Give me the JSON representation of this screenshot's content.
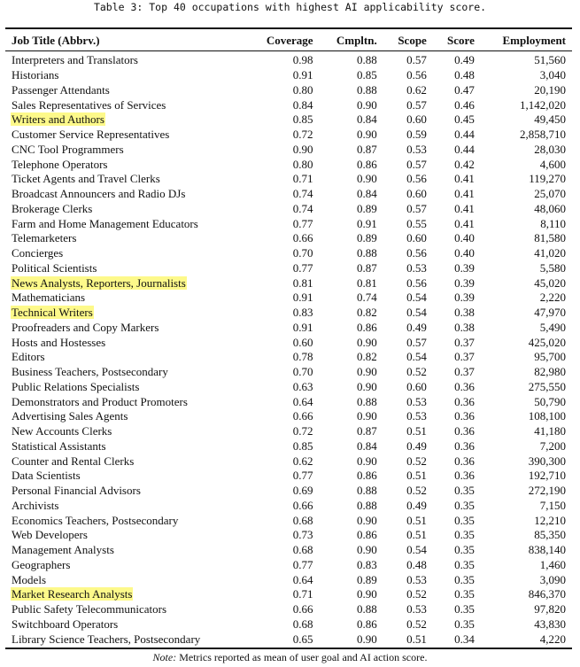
{
  "caption": "Table 3: Top 40 occupations with highest AI applicability score.",
  "headers": [
    "Job Title (Abbrv.)",
    "Coverage",
    "Cmpltn.",
    "Scope",
    "Score",
    "Employment"
  ],
  "highlight_color": "#fdf98a",
  "rows": [
    {
      "title": "Interpreters and Translators",
      "coverage": "0.98",
      "cmpltn": "0.88",
      "scope": "0.57",
      "score": "0.49",
      "employment": "51,560",
      "highlighted": false
    },
    {
      "title": "Historians",
      "coverage": "0.91",
      "cmpltn": "0.85",
      "scope": "0.56",
      "score": "0.48",
      "employment": "3,040",
      "highlighted": false
    },
    {
      "title": "Passenger Attendants",
      "coverage": "0.80",
      "cmpltn": "0.88",
      "scope": "0.62",
      "score": "0.47",
      "employment": "20,190",
      "highlighted": false
    },
    {
      "title": "Sales Representatives of Services",
      "coverage": "0.84",
      "cmpltn": "0.90",
      "scope": "0.57",
      "score": "0.46",
      "employment": "1,142,020",
      "highlighted": false
    },
    {
      "title": "Writers and Authors",
      "coverage": "0.85",
      "cmpltn": "0.84",
      "scope": "0.60",
      "score": "0.45",
      "employment": "49,450",
      "highlighted": true
    },
    {
      "title": "Customer Service Representatives",
      "coverage": "0.72",
      "cmpltn": "0.90",
      "scope": "0.59",
      "score": "0.44",
      "employment": "2,858,710",
      "highlighted": false
    },
    {
      "title": "CNC Tool Programmers",
      "coverage": "0.90",
      "cmpltn": "0.87",
      "scope": "0.53",
      "score": "0.44",
      "employment": "28,030",
      "highlighted": false
    },
    {
      "title": "Telephone Operators",
      "coverage": "0.80",
      "cmpltn": "0.86",
      "scope": "0.57",
      "score": "0.42",
      "employment": "4,600",
      "highlighted": false
    },
    {
      "title": "Ticket Agents and Travel Clerks",
      "coverage": "0.71",
      "cmpltn": "0.90",
      "scope": "0.56",
      "score": "0.41",
      "employment": "119,270",
      "highlighted": false
    },
    {
      "title": "Broadcast Announcers and Radio DJs",
      "coverage": "0.74",
      "cmpltn": "0.84",
      "scope": "0.60",
      "score": "0.41",
      "employment": "25,070",
      "highlighted": false
    },
    {
      "title": "Brokerage Clerks",
      "coverage": "0.74",
      "cmpltn": "0.89",
      "scope": "0.57",
      "score": "0.41",
      "employment": "48,060",
      "highlighted": false
    },
    {
      "title": "Farm and Home Management Educators",
      "coverage": "0.77",
      "cmpltn": "0.91",
      "scope": "0.55",
      "score": "0.41",
      "employment": "8,110",
      "highlighted": false
    },
    {
      "title": "Telemarketers",
      "coverage": "0.66",
      "cmpltn": "0.89",
      "scope": "0.60",
      "score": "0.40",
      "employment": "81,580",
      "highlighted": false
    },
    {
      "title": "Concierges",
      "coverage": "0.70",
      "cmpltn": "0.88",
      "scope": "0.56",
      "score": "0.40",
      "employment": "41,020",
      "highlighted": false
    },
    {
      "title": "Political Scientists",
      "coverage": "0.77",
      "cmpltn": "0.87",
      "scope": "0.53",
      "score": "0.39",
      "employment": "5,580",
      "highlighted": false
    },
    {
      "title": "News Analysts, Reporters, Journalists",
      "coverage": "0.81",
      "cmpltn": "0.81",
      "scope": "0.56",
      "score": "0.39",
      "employment": "45,020",
      "highlighted": true
    },
    {
      "title": "Mathematicians",
      "coverage": "0.91",
      "cmpltn": "0.74",
      "scope": "0.54",
      "score": "0.39",
      "employment": "2,220",
      "highlighted": false
    },
    {
      "title": "Technical Writers",
      "coverage": "0.83",
      "cmpltn": "0.82",
      "scope": "0.54",
      "score": "0.38",
      "employment": "47,970",
      "highlighted": true
    },
    {
      "title": "Proofreaders and Copy Markers",
      "coverage": "0.91",
      "cmpltn": "0.86",
      "scope": "0.49",
      "score": "0.38",
      "employment": "5,490",
      "highlighted": false
    },
    {
      "title": "Hosts and Hostesses",
      "coverage": "0.60",
      "cmpltn": "0.90",
      "scope": "0.57",
      "score": "0.37",
      "employment": "425,020",
      "highlighted": false
    },
    {
      "title": "Editors",
      "coverage": "0.78",
      "cmpltn": "0.82",
      "scope": "0.54",
      "score": "0.37",
      "employment": "95,700",
      "highlighted": false
    },
    {
      "title": "Business Teachers, Postsecondary",
      "coverage": "0.70",
      "cmpltn": "0.90",
      "scope": "0.52",
      "score": "0.37",
      "employment": "82,980",
      "highlighted": false
    },
    {
      "title": "Public Relations Specialists",
      "coverage": "0.63",
      "cmpltn": "0.90",
      "scope": "0.60",
      "score": "0.36",
      "employment": "275,550",
      "highlighted": false
    },
    {
      "title": "Demonstrators and Product Promoters",
      "coverage": "0.64",
      "cmpltn": "0.88",
      "scope": "0.53",
      "score": "0.36",
      "employment": "50,790",
      "highlighted": false
    },
    {
      "title": "Advertising Sales Agents",
      "coverage": "0.66",
      "cmpltn": "0.90",
      "scope": "0.53",
      "score": "0.36",
      "employment": "108,100",
      "highlighted": false
    },
    {
      "title": "New Accounts Clerks",
      "coverage": "0.72",
      "cmpltn": "0.87",
      "scope": "0.51",
      "score": "0.36",
      "employment": "41,180",
      "highlighted": false
    },
    {
      "title": "Statistical Assistants",
      "coverage": "0.85",
      "cmpltn": "0.84",
      "scope": "0.49",
      "score": "0.36",
      "employment": "7,200",
      "highlighted": false
    },
    {
      "title": "Counter and Rental Clerks",
      "coverage": "0.62",
      "cmpltn": "0.90",
      "scope": "0.52",
      "score": "0.36",
      "employment": "390,300",
      "highlighted": false
    },
    {
      "title": "Data Scientists",
      "coverage": "0.77",
      "cmpltn": "0.86",
      "scope": "0.51",
      "score": "0.36",
      "employment": "192,710",
      "highlighted": false
    },
    {
      "title": "Personal Financial Advisors",
      "coverage": "0.69",
      "cmpltn": "0.88",
      "scope": "0.52",
      "score": "0.35",
      "employment": "272,190",
      "highlighted": false
    },
    {
      "title": "Archivists",
      "coverage": "0.66",
      "cmpltn": "0.88",
      "scope": "0.49",
      "score": "0.35",
      "employment": "7,150",
      "highlighted": false
    },
    {
      "title": "Economics Teachers, Postsecondary",
      "coverage": "0.68",
      "cmpltn": "0.90",
      "scope": "0.51",
      "score": "0.35",
      "employment": "12,210",
      "highlighted": false
    },
    {
      "title": "Web Developers",
      "coverage": "0.73",
      "cmpltn": "0.86",
      "scope": "0.51",
      "score": "0.35",
      "employment": "85,350",
      "highlighted": false
    },
    {
      "title": "Management Analysts",
      "coverage": "0.68",
      "cmpltn": "0.90",
      "scope": "0.54",
      "score": "0.35",
      "employment": "838,140",
      "highlighted": false
    },
    {
      "title": "Geographers",
      "coverage": "0.77",
      "cmpltn": "0.83",
      "scope": "0.48",
      "score": "0.35",
      "employment": "1,460",
      "highlighted": false
    },
    {
      "title": "Models",
      "coverage": "0.64",
      "cmpltn": "0.89",
      "scope": "0.53",
      "score": "0.35",
      "employment": "3,090",
      "highlighted": false
    },
    {
      "title": "Market Research Analysts",
      "coverage": "0.71",
      "cmpltn": "0.90",
      "scope": "0.52",
      "score": "0.35",
      "employment": "846,370",
      "highlighted": true
    },
    {
      "title": "Public Safety Telecommunicators",
      "coverage": "0.66",
      "cmpltn": "0.88",
      "scope": "0.53",
      "score": "0.35",
      "employment": "97,820",
      "highlighted": false
    },
    {
      "title": "Switchboard Operators",
      "coverage": "0.68",
      "cmpltn": "0.86",
      "scope": "0.52",
      "score": "0.35",
      "employment": "43,830",
      "highlighted": false
    },
    {
      "title": "Library Science Teachers, Postsecondary",
      "coverage": "0.65",
      "cmpltn": "0.90",
      "scope": "0.51",
      "score": "0.34",
      "employment": "4,220",
      "highlighted": false
    }
  ],
  "note": {
    "label": "Note:",
    "text": " Metrics reported as mean of user goal and AI action score."
  }
}
